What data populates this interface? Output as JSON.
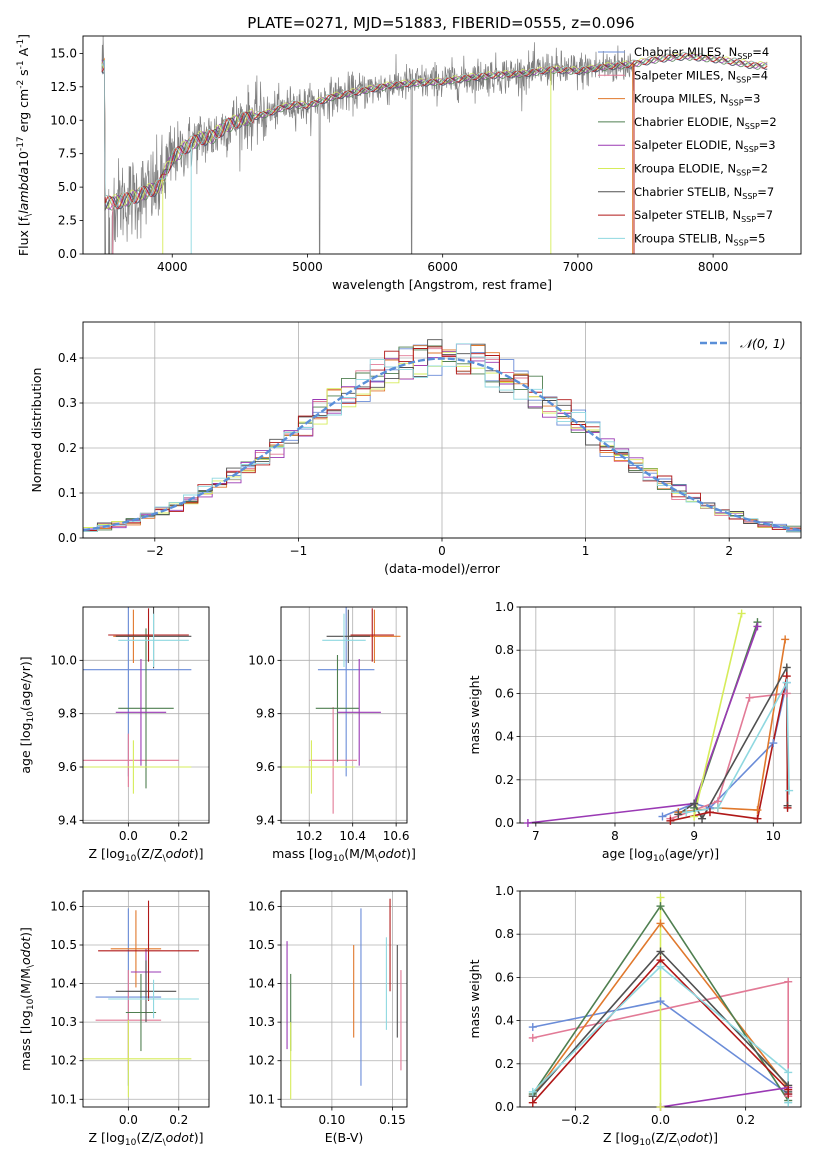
{
  "title": "PLATE=0271, MJD=51883, FIBERID=0555, z=0.096",
  "colors": {
    "chab_miles": "#6a8cd8",
    "salp_miles": "#e27a96",
    "krou_miles": "#e0782c",
    "chab_elodie": "#4f7f50",
    "salp_elodie": "#9a39b4",
    "krou_elodie": "#d6ec5a",
    "chab_stelib": "#505050",
    "salp_stelib": "#b01818",
    "krou_stelib": "#8fd8e0",
    "data": "#808080"
  },
  "legend_spectra": [
    {
      "key": "chab_miles",
      "text": "Chabrier MILES, N$_{SSP}$=4"
    },
    {
      "key": "salp_miles",
      "text": "Salpeter MILES, N$_{SSP}$=4"
    },
    {
      "key": "krou_miles",
      "text": "Kroupa MILES, N$_{SSP}$=3"
    },
    {
      "key": "chab_elodie",
      "text": "Chabrier ELODIE, N$_{SSP}$=2"
    },
    {
      "key": "salp_elodie",
      "text": "Salpeter ELODIE, N$_{SSP}$=3"
    },
    {
      "key": "krou_elodie",
      "text": "Kroupa ELODIE, N$_{SSP}$=2"
    },
    {
      "key": "chab_stelib",
      "text": "Chabrier STELIB, N$_{SSP}$=7"
    },
    {
      "key": "salp_stelib",
      "text": "Salpeter STELIB, N$_{SSP}$=7"
    },
    {
      "key": "krou_stelib",
      "text": "Kroupa STELIB, N$_{SSP}$=5"
    }
  ],
  "legend_hist": "𝒩(0, 1)",
  "chart_data": [
    {
      "type": "line",
      "xlabel": "wavelength [Angstrom, rest frame]",
      "ylabel": "Flux [f$_\\lambda$10$^{-17}$ erg cm$^{-2}$ s$^{-1}$ A$^{-1}$]",
      "xlim": [
        3340,
        8650
      ],
      "ylim": [
        0,
        16.3
      ],
      "xticks": [
        4000,
        5000,
        6000,
        7000,
        8000
      ],
      "yticks": [
        0.0,
        2.5,
        5.0,
        7.5,
        10.0,
        12.5,
        15.0
      ],
      "spectrum_continuum": [
        [
          3500,
          3.8
        ],
        [
          3600,
          3.9
        ],
        [
          3700,
          4.2
        ],
        [
          3800,
          4.6
        ],
        [
          3900,
          5.0
        ],
        [
          4000,
          7.2
        ],
        [
          4100,
          8.0
        ],
        [
          4200,
          8.6
        ],
        [
          4300,
          8.8
        ],
        [
          4400,
          9.6
        ],
        [
          4500,
          10.0
        ],
        [
          4600,
          10.3
        ],
        [
          4700,
          10.5
        ],
        [
          4800,
          10.9
        ],
        [
          4900,
          11.2
        ],
        [
          5000,
          11.1
        ],
        [
          5200,
          11.8
        ],
        [
          5400,
          12.2
        ],
        [
          5600,
          12.6
        ],
        [
          5800,
          12.8
        ],
        [
          6000,
          12.9
        ],
        [
          6200,
          13.2
        ],
        [
          6400,
          13.4
        ],
        [
          6600,
          13.5
        ],
        [
          6800,
          13.8
        ],
        [
          7000,
          13.7
        ],
        [
          7200,
          14.0
        ],
        [
          7400,
          14.2
        ],
        [
          7600,
          14.6
        ],
        [
          7800,
          14.8
        ],
        [
          8000,
          14.6
        ],
        [
          8200,
          14.3
        ],
        [
          8300,
          14.1
        ]
      ],
      "data_range": [
        3480,
        7410
      ],
      "model_range": [
        3480,
        8400
      ]
    },
    {
      "type": "bar",
      "xlabel": "(data-model)/error",
      "ylabel": "Normed distribution",
      "xlim": [
        -2.5,
        2.5
      ],
      "ylim": [
        0,
        0.48
      ],
      "xticks": [
        -2,
        -1,
        0,
        1,
        2
      ],
      "xtick_labels": [
        "−2",
        "−1",
        "0",
        "1",
        "2"
      ],
      "yticks": [
        0.0,
        0.1,
        0.2,
        0.3,
        0.4
      ],
      "bin_width": 0.1,
      "gaussian": {
        "mu": 0,
        "sigma": 1
      }
    },
    {
      "type": "scatter",
      "name": "age_vs_Z",
      "xlabel": "Z [log$_{10}$(Z/Z$_\\odot$)]",
      "ylabel": "age  [log$_{10}$(age/yr)]",
      "xlim": [
        -0.18,
        0.32
      ],
      "ylim": [
        9.39,
        10.2
      ],
      "xticks": [
        0.0,
        0.2
      ],
      "yticks": [
        9.4,
        9.6,
        9.8,
        10.0
      ],
      "points": [
        {
          "key": "chab_miles",
          "x": 0.0,
          "xerr": 0.25,
          "y": 9.965,
          "yerr": 0.4
        },
        {
          "key": "salp_miles",
          "x": 0.0,
          "xerr": 0.2,
          "y": 9.625,
          "yerr": 0.1
        },
        {
          "key": "krou_miles",
          "x": 0.02,
          "xerr": 0.08,
          "y": 10.09,
          "yerr": 0.1
        },
        {
          "key": "chab_elodie",
          "x": 0.07,
          "xerr": 0.11,
          "y": 9.82,
          "yerr": 0.3
        },
        {
          "key": "salp_elodie",
          "x": 0.05,
          "xerr": 0.1,
          "y": 9.805,
          "yerr": 0.2
        },
        {
          "key": "krou_elodie",
          "x": 0.02,
          "xerr": 0.23,
          "y": 9.6,
          "yerr": 0.1
        },
        {
          "key": "chab_stelib",
          "x": 0.1,
          "xerr": 0.15,
          "y": 10.09,
          "yerr": 0.12
        },
        {
          "key": "salp_stelib",
          "x": 0.08,
          "xerr": 0.16,
          "y": 10.095,
          "yerr": 0.1
        },
        {
          "key": "krou_stelib",
          "x": 0.1,
          "xerr": 0.14,
          "y": 10.075,
          "yerr": 0.1
        }
      ]
    },
    {
      "type": "scatter",
      "name": "age_vs_mass",
      "xlabel": "mass [log$_{10}$(M/M$_\\odot$)]",
      "ylabel": "",
      "xlim": [
        10.07,
        10.65
      ],
      "ylim": [
        9.39,
        10.2
      ],
      "xticks": [
        10.2,
        10.4,
        10.6
      ],
      "yticks": [
        9.4,
        9.6,
        9.8,
        10.0
      ],
      "points": [
        {
          "key": "chab_miles",
          "x": 10.37,
          "xerr": 0.13,
          "y": 9.965,
          "yerr": 0.4
        },
        {
          "key": "salp_miles",
          "x": 10.31,
          "xerr": 0.11,
          "y": 9.625,
          "yerr": 0.2
        },
        {
          "key": "krou_miles",
          "x": 10.5,
          "xerr": 0.12,
          "y": 10.09,
          "yerr": 0.1
        },
        {
          "key": "chab_elodie",
          "x": 10.33,
          "xerr": 0.1,
          "y": 9.82,
          "yerr": 0.2
        },
        {
          "key": "salp_elodie",
          "x": 10.43,
          "xerr": 0.1,
          "y": 9.805,
          "yerr": 0.2
        },
        {
          "key": "krou_elodie",
          "x": 10.21,
          "xerr": 0.2,
          "y": 9.6,
          "yerr": 0.1
        },
        {
          "key": "chab_stelib",
          "x": 10.38,
          "xerr": 0.1,
          "y": 10.09,
          "yerr": 0.1
        },
        {
          "key": "salp_stelib",
          "x": 10.49,
          "xerr": 0.1,
          "y": 10.095,
          "yerr": 0.1
        },
        {
          "key": "krou_stelib",
          "x": 10.36,
          "xerr": 0.1,
          "y": 10.075,
          "yerr": 0.1
        }
      ]
    },
    {
      "type": "line",
      "name": "weight_vs_age",
      "xlabel": "age  [log$_{10}$(age/yr)]",
      "ylabel": "mass weight",
      "xlim": [
        6.8,
        10.35
      ],
      "ylim": [
        0,
        1.0
      ],
      "xticks": [
        7,
        8,
        9,
        10
      ],
      "yticks": [
        0.0,
        0.2,
        0.4,
        0.6,
        0.8,
        1.0
      ],
      "series": [
        {
          "key": "chab_miles",
          "points": [
            [
              8.6,
              0.03
            ],
            [
              9.0,
              0.09
            ],
            [
              9.2,
              0.07
            ],
            [
              10.0,
              0.37
            ],
            [
              10.17,
              0.65
            ]
          ]
        },
        {
          "key": "salp_miles",
          "points": [
            [
              8.7,
              0.02
            ],
            [
              9.3,
              0.1
            ],
            [
              9.7,
              0.58
            ],
            [
              10.17,
              0.6
            ]
          ]
        },
        {
          "key": "krou_miles",
          "points": [
            [
              8.8,
              0.05
            ],
            [
              9.3,
              0.07
            ],
            [
              9.8,
              0.06
            ],
            [
              10.15,
              0.85
            ]
          ]
        },
        {
          "key": "chab_elodie",
          "points": [
            [
              9.0,
              0.07
            ],
            [
              9.8,
              0.93
            ]
          ]
        },
        {
          "key": "salp_elodie",
          "points": [
            [
              6.9,
              0.0
            ],
            [
              9.0,
              0.09
            ],
            [
              9.8,
              0.91
            ]
          ]
        },
        {
          "key": "krou_elodie",
          "points": [
            [
              9.0,
              0.03
            ],
            [
              9.6,
              0.97
            ]
          ]
        },
        {
          "key": "chab_stelib",
          "points": [
            [
              8.8,
              0.04
            ],
            [
              9.0,
              0.09
            ],
            [
              9.1,
              0.02
            ],
            [
              10.17,
              0.72
            ],
            [
              10.18,
              0.08
            ]
          ]
        },
        {
          "key": "salp_stelib",
          "points": [
            [
              8.7,
              0.01
            ],
            [
              9.2,
              0.05
            ],
            [
              9.8,
              0.02
            ],
            [
              10.17,
              0.68
            ],
            [
              10.18,
              0.07
            ]
          ]
        },
        {
          "key": "krou_stelib",
          "points": [
            [
              8.9,
              0.05
            ],
            [
              9.3,
              0.07
            ],
            [
              10.17,
              0.65
            ],
            [
              10.2,
              0.15
            ]
          ]
        }
      ]
    },
    {
      "type": "scatter",
      "name": "mass_vs_Z",
      "xlabel": "Z [log$_{10}$(Z/Z$_\\odot$)]",
      "ylabel": "mass [log$_{10}$(M/M$_\\odot$)]",
      "xlim": [
        -0.18,
        0.32
      ],
      "ylim": [
        10.08,
        10.64
      ],
      "xticks": [
        0.0,
        0.2
      ],
      "yticks": [
        10.1,
        10.2,
        10.3,
        10.4,
        10.5,
        10.6
      ],
      "points": [
        {
          "key": "chab_miles",
          "x": 0.0,
          "xerr": 0.13,
          "y": 10.365,
          "yerr": 0.23
        },
        {
          "key": "salp_miles",
          "x": 0.0,
          "xerr": 0.13,
          "y": 10.305,
          "yerr": 0.13
        },
        {
          "key": "krou_miles",
          "x": 0.03,
          "xerr": 0.1,
          "y": 10.49,
          "yerr": 0.1
        },
        {
          "key": "chab_elodie",
          "x": 0.05,
          "xerr": 0.06,
          "y": 10.325,
          "yerr": 0.1
        },
        {
          "key": "salp_elodie",
          "x": 0.07,
          "xerr": 0.06,
          "y": 10.43,
          "yerr": 0.06
        },
        {
          "key": "krou_elodie",
          "x": 0.0,
          "xerr": 0.25,
          "y": 10.205,
          "yerr": 0.1
        },
        {
          "key": "chab_stelib",
          "x": 0.07,
          "xerr": 0.12,
          "y": 10.38,
          "yerr": 0.08
        },
        {
          "key": "salp_stelib",
          "x": 0.08,
          "xerr": 0.2,
          "y": 10.485,
          "yerr": 0.13
        },
        {
          "key": "krou_stelib",
          "x": 0.1,
          "xerr": 0.18,
          "y": 10.36,
          "yerr": 0.05
        }
      ]
    },
    {
      "type": "scatter",
      "name": "mass_vs_EBV",
      "xlabel": "E(B-V)",
      "ylabel": "",
      "xlim": [
        0.058,
        0.162
      ],
      "ylim": [
        10.08,
        10.64
      ],
      "xticks": [
        0.1,
        0.15
      ],
      "xtick_labels": [
        "0.10",
        "0.15"
      ],
      "yticks": [
        10.1,
        10.2,
        10.3,
        10.4,
        10.5,
        10.6
      ],
      "points": [
        {
          "key": "chab_miles",
          "x": 0.124,
          "y": 10.365,
          "yerr": 0.23
        },
        {
          "key": "salp_miles",
          "x": 0.157,
          "y": 10.305,
          "yerr": 0.13
        },
        {
          "key": "krou_miles",
          "x": 0.118,
          "y": 10.38,
          "yerr": 0.12
        },
        {
          "key": "chab_elodie",
          "x": 0.066,
          "y": 10.325,
          "yerr": 0.1
        },
        {
          "key": "salp_elodie",
          "x": 0.063,
          "y": 10.37,
          "yerr": 0.14
        },
        {
          "key": "krou_elodie",
          "x": 0.066,
          "y": 10.2,
          "yerr": 0.1
        },
        {
          "key": "chab_stelib",
          "x": 0.154,
          "y": 10.38,
          "yerr": 0.12
        },
        {
          "key": "salp_stelib",
          "x": 0.148,
          "y": 10.5,
          "yerr": 0.12
        },
        {
          "key": "krou_stelib",
          "x": 0.145,
          "y": 10.4,
          "yerr": 0.12
        }
      ]
    },
    {
      "type": "line",
      "name": "weight_vs_Z",
      "xlabel": "Z [log$_{10}$(Z/Z$_\\odot$)]",
      "ylabel": "mass weight",
      "xlim": [
        -0.33,
        0.33
      ],
      "ylim": [
        0,
        1.0
      ],
      "xticks": [
        -0.2,
        0.0,
        0.2
      ],
      "xtick_labels": [
        "−0.2",
        "0.0",
        "0.2"
      ],
      "yticks": [
        0.0,
        0.2,
        0.4,
        0.6,
        0.8,
        1.0
      ],
      "series": [
        {
          "key": "chab_miles",
          "points": [
            [
              -0.3,
              0.37
            ],
            [
              0.0,
              0.49
            ],
            [
              0.3,
              0.06
            ]
          ]
        },
        {
          "key": "salp_miles",
          "points": [
            [
              -0.3,
              0.32
            ],
            [
              0.3,
              0.58
            ],
            [
              0.3,
              0.05
            ]
          ]
        },
        {
          "key": "krou_miles",
          "points": [
            [
              -0.3,
              0.05
            ],
            [
              0.0,
              0.85
            ],
            [
              0.3,
              0.09
            ]
          ]
        },
        {
          "key": "chab_elodie",
          "points": [
            [
              -0.3,
              0.06
            ],
            [
              0.0,
              0.93
            ],
            [
              0.3,
              0.03
            ]
          ]
        },
        {
          "key": "salp_elodie",
          "points": [
            [
              0.0,
              0.0
            ],
            [
              0.3,
              0.09
            ]
          ]
        },
        {
          "key": "krou_elodie",
          "points": [
            [
              0.0,
              0.0
            ],
            [
              0.0,
              0.97
            ]
          ]
        },
        {
          "key": "chab_stelib",
          "points": [
            [
              -0.3,
              0.05
            ],
            [
              0.0,
              0.72
            ],
            [
              0.3,
              0.1
            ],
            [
              0.3,
              0.07
            ]
          ]
        },
        {
          "key": "salp_stelib",
          "points": [
            [
              -0.3,
              0.02
            ],
            [
              0.0,
              0.68
            ],
            [
              0.3,
              0.08
            ],
            [
              0.3,
              0.06
            ]
          ]
        },
        {
          "key": "krou_stelib",
          "points": [
            [
              -0.3,
              0.07
            ],
            [
              0.0,
              0.65
            ],
            [
              0.3,
              0.16
            ],
            [
              0.3,
              0.02
            ]
          ]
        }
      ]
    }
  ]
}
